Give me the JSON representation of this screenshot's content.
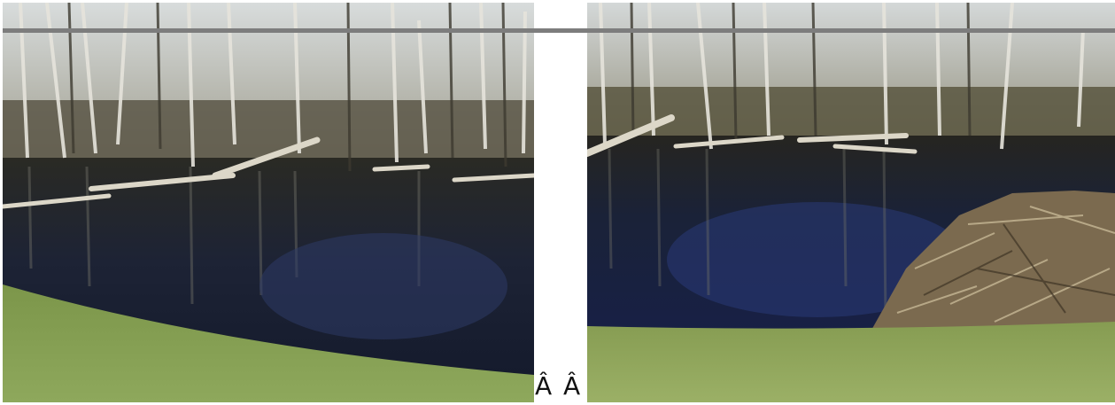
{
  "photos": [
    {
      "description_name": "beaver-pond-left",
      "colors": {
        "sky": "#c9cfd2",
        "trees": "#5e5a4c",
        "water": "#1c2233",
        "water_reflection": "#2b3557",
        "grass": "#7f9a4c",
        "log": "#d9d4c6"
      }
    },
    {
      "description_name": "beaver-pond-right-with-dam",
      "colors": {
        "sky": "#c5cbcd",
        "trees": "#5c5a47",
        "water": "#18203a",
        "water_reflection": "#263467",
        "grass": "#8aa05a",
        "dam": "#8b7a5e",
        "log": "#dcd8cb"
      }
    }
  ],
  "separator_text": "Â Â",
  "rule_color": "#7d7d7d"
}
